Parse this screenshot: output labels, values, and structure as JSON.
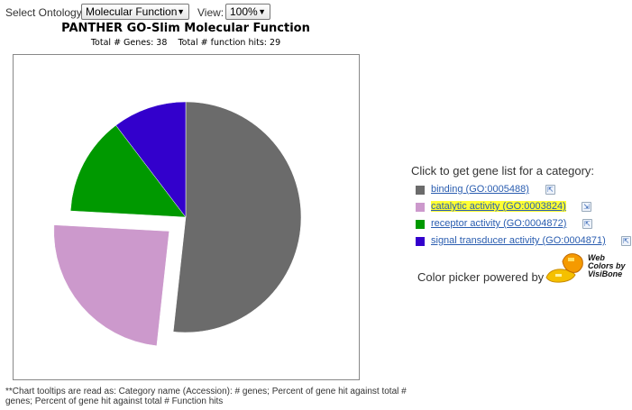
{
  "controls": {
    "ontology_label": "Select Ontology:",
    "ontology_value": "Molecular Function",
    "view_label": "View:",
    "view_value": "100%"
  },
  "header": {
    "title": "PANTHER GO-Slim Molecular Function",
    "subtitle": "Total # Genes: 38    Total # function hits: 29"
  },
  "legend": {
    "title": "Click to get gene list for a category:",
    "items": [
      {
        "label": "binding (GO:0005488)",
        "color": "#6b6b6b",
        "highlighted": false
      },
      {
        "label": "catalytic activity (GO:0003824)",
        "color": "#cc99cc",
        "highlighted": true
      },
      {
        "label": "receptor activity (GO:0004872)",
        "color": "#009900",
        "highlighted": false
      },
      {
        "label": "signal transducer activity (GO:0004871)",
        "color": "#3300cc",
        "highlighted": false
      }
    ]
  },
  "color_picker": {
    "text": "Color picker powered by",
    "logo_text": "Web\nColors by\nVisiBone"
  },
  "footnote": "**Chart tooltips are read as: Category name (Accession): # genes; Percent of gene hit against total # genes; Percent of gene hit against total # Function hits",
  "chart_data": {
    "type": "pie",
    "title": "PANTHER GO-Slim Molecular Function",
    "slices": [
      {
        "name": "binding (GO:0005488)",
        "value": 15,
        "color": "#6b6b6b",
        "exploded": false
      },
      {
        "name": "catalytic activity (GO:0003824)",
        "value": 7,
        "color": "#cc99cc",
        "exploded": true
      },
      {
        "name": "receptor activity (GO:0004872)",
        "value": 4,
        "color": "#009900",
        "exploded": false
      },
      {
        "name": "signal transducer activity (GO:0004871)",
        "value": 3,
        "color": "#3300cc",
        "exploded": false
      }
    ],
    "legend_position": "right"
  }
}
